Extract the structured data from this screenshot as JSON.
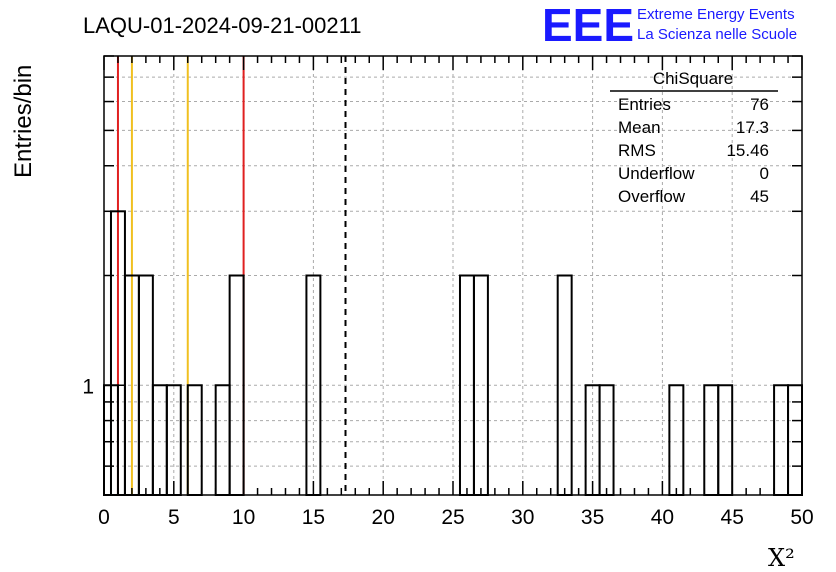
{
  "header": {
    "run_title": "LAQU-01-2024-09-21-00211",
    "logo_text": "EEE",
    "logo_line1": "Extreme Energy Events",
    "logo_line2": "La Scienza nelle Scuole"
  },
  "stats": {
    "title": "ChiSquare",
    "rows": [
      {
        "label": "Entries",
        "value": "76"
      },
      {
        "label": "Mean",
        "value": "17.3"
      },
      {
        "label": "RMS",
        "value": "15.46"
      },
      {
        "label": "Underflow",
        "value": "0"
      },
      {
        "label": "Overflow",
        "value": "45"
      }
    ]
  },
  "colors": {
    "red_line": "#e02020",
    "yellow_line": "#f0c020",
    "grid": "#aaaaaa",
    "logo": "#1a1aff"
  },
  "chart_data": {
    "type": "bar",
    "histogram": "ChiSquare",
    "title": "LAQU-01-2024-09-21-00211",
    "xlabel": "X²",
    "ylabel": "Entries/bin",
    "xlim": [
      0,
      50
    ],
    "yscale": "log",
    "ylim": [
      0.5,
      8
    ],
    "bin_width": 1,
    "grid": true,
    "x_ticks": [
      0,
      5,
      10,
      15,
      20,
      25,
      30,
      35,
      40,
      45,
      50
    ],
    "y_tick_labels": [
      {
        "value": 1,
        "label": "1"
      }
    ],
    "bins": [
      {
        "x": 0.5,
        "value": 1
      },
      {
        "x": 1.0,
        "value": 3
      },
      {
        "x": 2.0,
        "value": 2
      },
      {
        "x": 3.0,
        "value": 2
      },
      {
        "x": 4.0,
        "value": 1
      },
      {
        "x": 5.0,
        "value": 1
      },
      {
        "x": 6.5,
        "value": 1
      },
      {
        "x": 8.5,
        "value": 1
      },
      {
        "x": 9.5,
        "value": 2
      },
      {
        "x": 15.0,
        "value": 2
      },
      {
        "x": 26.0,
        "value": 2
      },
      {
        "x": 27.0,
        "value": 2
      },
      {
        "x": 33.0,
        "value": 2
      },
      {
        "x": 35.0,
        "value": 1
      },
      {
        "x": 36.0,
        "value": 1
      },
      {
        "x": 41.0,
        "value": 1
      },
      {
        "x": 43.5,
        "value": 1
      },
      {
        "x": 44.5,
        "value": 1
      },
      {
        "x": 48.5,
        "value": 1
      },
      {
        "x": 49.5,
        "value": 1
      }
    ],
    "reference_lines": [
      {
        "x": 1,
        "color": "red"
      },
      {
        "x": 2,
        "color": "yellow"
      },
      {
        "x": 6,
        "color": "yellow"
      },
      {
        "x": 10,
        "color": "red"
      },
      {
        "x": 17.3,
        "color": "black",
        "style": "dashed",
        "meaning": "mean"
      }
    ]
  }
}
